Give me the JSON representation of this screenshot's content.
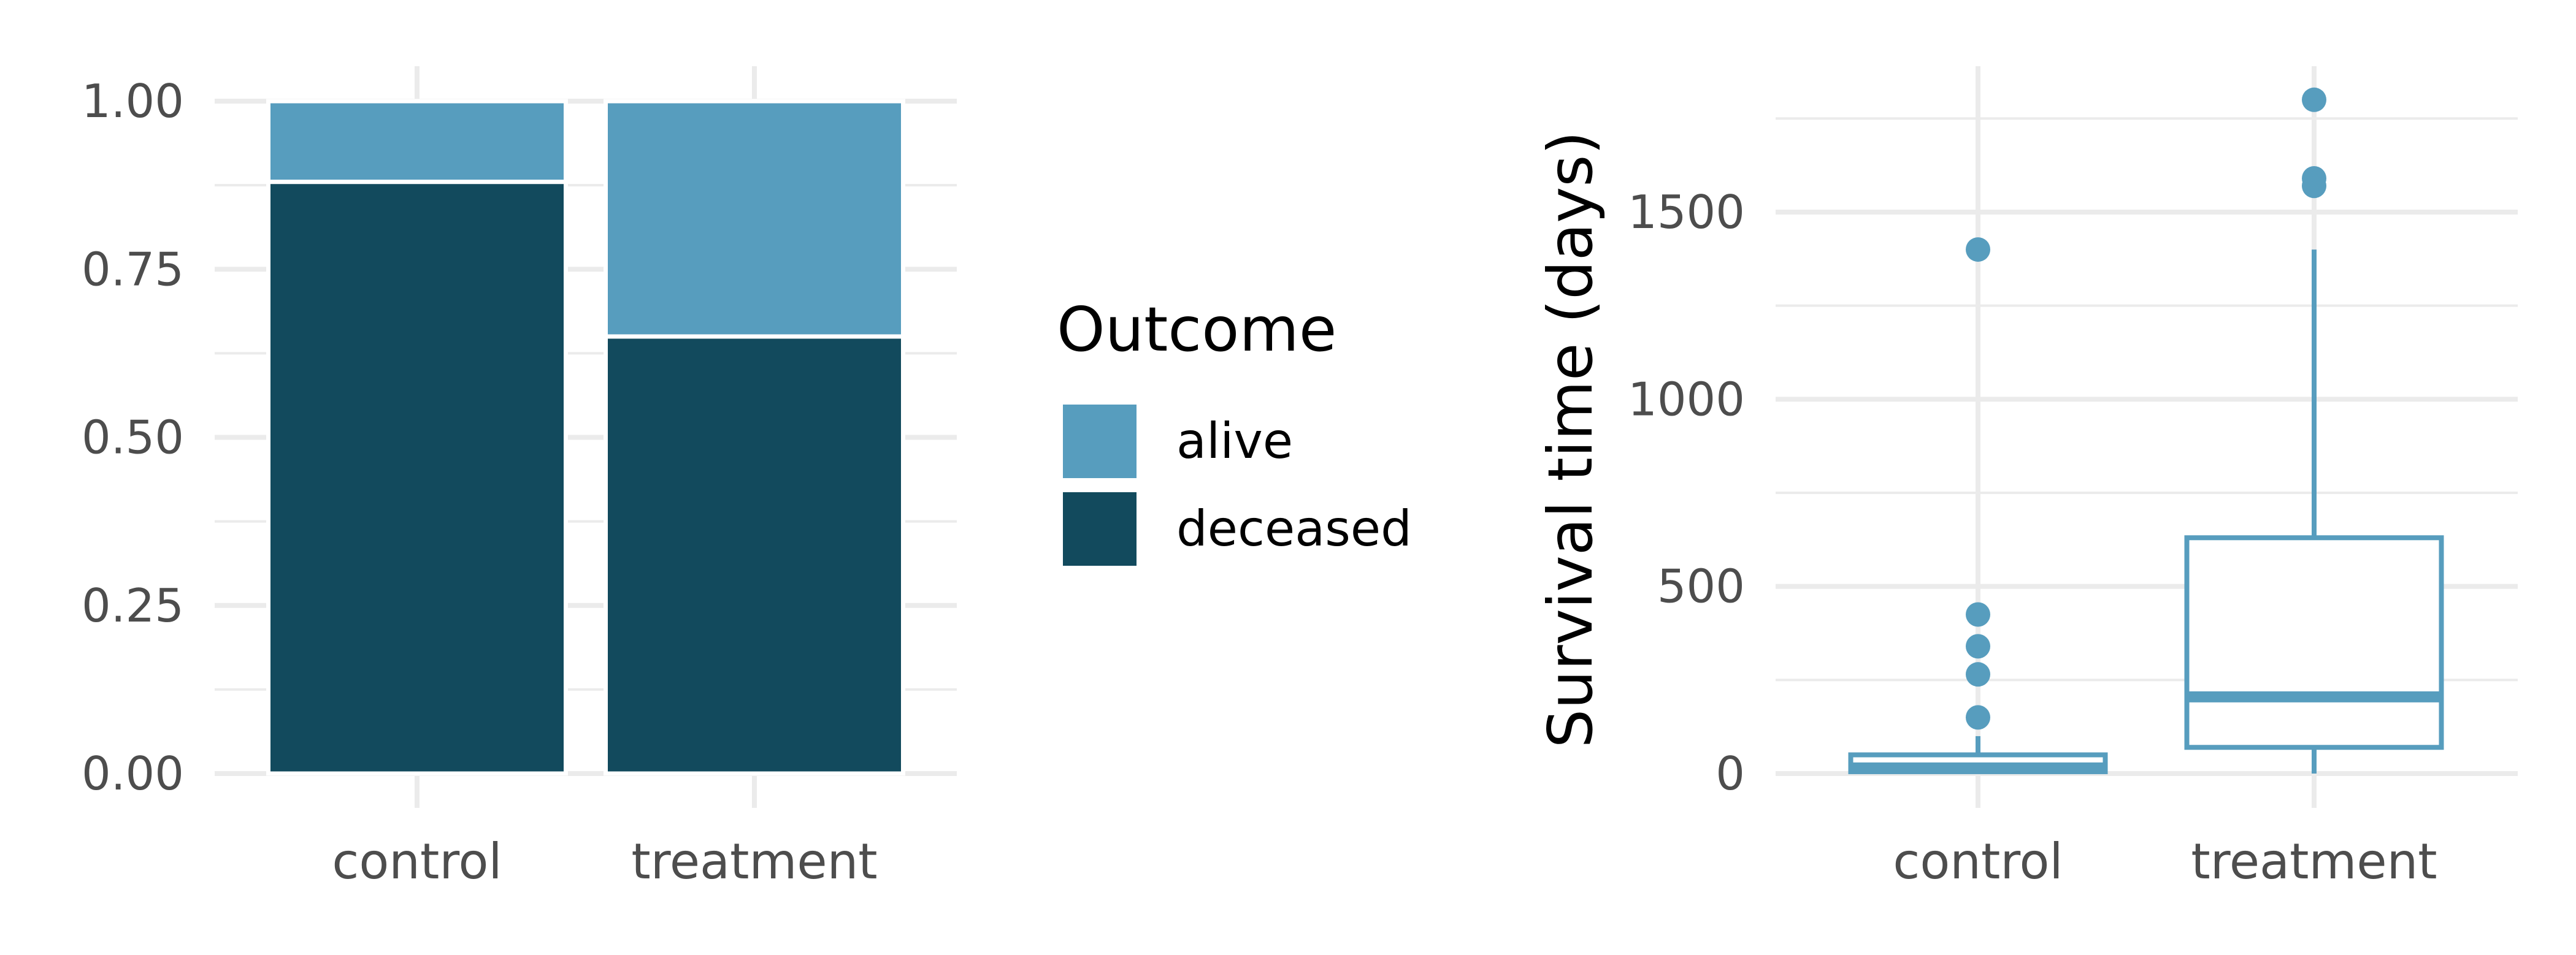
{
  "colors": {
    "alive": "#579DBE",
    "deceased": "#124A5D",
    "box": "#579DBE",
    "grid": "#EBEBEB",
    "tick_text": "#4D4D4D",
    "title_text": "#000000",
    "background": "#FFFFFF"
  },
  "chart_data": [
    {
      "type": "bar",
      "stacked": true,
      "normalized": true,
      "categories": [
        "control",
        "treatment"
      ],
      "series": [
        {
          "name": "deceased",
          "color": "#124A5D",
          "values": [
            0.88,
            0.65
          ]
        },
        {
          "name": "alive",
          "color": "#579DBE",
          "values": [
            0.12,
            0.35
          ]
        }
      ],
      "ylim": [
        0,
        1
      ],
      "yticks": [
        0,
        0.25,
        0.5,
        0.75,
        1
      ],
      "yticklabels": [
        "0.00",
        "0.25",
        "0.50",
        "0.75",
        "1.00"
      ],
      "xlabel": "",
      "ylabel": "",
      "grid": true,
      "legend": {
        "title": "Outcome",
        "placement": "right",
        "entries": [
          {
            "label": "alive",
            "color": "#579DBE"
          },
          {
            "label": "deceased",
            "color": "#124A5D"
          }
        ]
      }
    },
    {
      "type": "boxplot",
      "categories": [
        "control",
        "treatment"
      ],
      "boxes": [
        {
          "category": "control",
          "min": 0,
          "q1": 5,
          "median": 15,
          "q3": 50,
          "max": 100,
          "outliers": [
            150,
            265,
            340,
            425,
            1400
          ]
        },
        {
          "category": "treatment",
          "min": 0,
          "q1": 70,
          "median": 205,
          "q3": 630,
          "max": 1400,
          "outliers": [
            1570,
            1590,
            1800
          ]
        }
      ],
      "ylim": [
        -15,
        1900
      ],
      "yticks": [
        0,
        500,
        1000,
        1500
      ],
      "yticklabels": [
        "0",
        "500",
        "1000",
        "1500"
      ],
      "xlabel": "",
      "ylabel": "Survival time (days)",
      "grid": true
    }
  ]
}
